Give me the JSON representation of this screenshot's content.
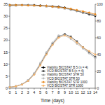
{
  "chart_data": {
    "type": "line",
    "x_label": "Time (days)",
    "x": [
      0,
      1,
      2,
      3,
      4,
      5,
      6,
      7,
      8,
      9,
      10,
      11,
      12,
      13,
      14
    ],
    "xlim": [
      0,
      14
    ],
    "xticks": [
      0,
      1,
      2,
      3,
      4,
      5,
      6,
      7,
      8,
      9,
      10,
      11,
      12,
      13,
      14
    ],
    "ylim": [
      0,
      35
    ],
    "yticks": [
      0,
      5,
      10,
      15,
      20,
      25,
      30,
      35
    ],
    "y2lim": [
      0,
      100
    ],
    "y2ticks": [
      0,
      20,
      40,
      60,
      80,
      100
    ],
    "grid": false,
    "legend": "lower right",
    "series": [
      {
        "name": "Viability BIOSTAT B 5 (n = 4)",
        "color": "#000000",
        "axis": "y2",
        "marker": "diamond",
        "line_style": "solid",
        "values": [
          99,
          99,
          99,
          99,
          99,
          98.5,
          98,
          97.5,
          97,
          96,
          94,
          92,
          90,
          88,
          86
        ]
      },
      {
        "name": "VCD BIOSTAT B 5 (n = 4)",
        "color": "#555555",
        "marker": "square",
        "line_style": "solid",
        "values": [
          0.4,
          0.8,
          1.6,
          3.2,
          6,
          10,
          14.5,
          18.5,
          21.5,
          22.5,
          21.5,
          19.5,
          17,
          15,
          13
        ]
      },
      {
        "name": "Viability BIOSTAT STR 50",
        "color": "#999999",
        "axis": "y2",
        "marker": "triangle",
        "line_style": "solid",
        "values": [
          98,
          98.5,
          99,
          99,
          98.5,
          98,
          97.5,
          97,
          96,
          95,
          93.5,
          92,
          90,
          89,
          87
        ]
      },
      {
        "name": "VCD BIOSTAT STR 50",
        "color": "#bbbbbb",
        "marker": "circle",
        "line_style": "solid",
        "values": [
          0.4,
          0.8,
          1.7,
          3.4,
          6.3,
          10.5,
          15,
          19,
          22,
          22,
          20.5,
          18.5,
          16.5,
          14.5,
          12.5
        ]
      },
      {
        "name": "Viability BIOSTAT STR 1000",
        "color": "#e8891f",
        "axis": "y2",
        "marker": "diamond",
        "line_style": "solid",
        "values": [
          99,
          99,
          99,
          98.5,
          98.5,
          98,
          98,
          97,
          96.5,
          95.5,
          94.5,
          93,
          91.5,
          90,
          88
        ]
      },
      {
        "name": "VCD BIOSTAT STR 1000",
        "color": "#f4b36b",
        "marker": "circle",
        "line_style": "solid",
        "values": [
          0.4,
          0.8,
          1.5,
          3,
          5.6,
          9.5,
          14,
          18,
          21,
          22,
          21,
          19,
          17,
          15.5,
          14
        ]
      }
    ]
  }
}
